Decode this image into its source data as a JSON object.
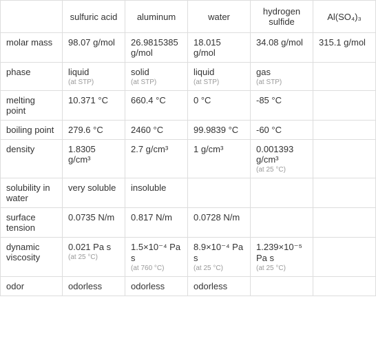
{
  "table": {
    "columns": [
      "",
      "sulfuric acid",
      "aluminum",
      "water",
      "hydrogen sulfide",
      "Al(SO₄)₃"
    ],
    "rows": [
      {
        "label": "molar mass",
        "cells": [
          {
            "main": "98.07 g/mol",
            "sub": ""
          },
          {
            "main": "26.9815385 g/mol",
            "sub": ""
          },
          {
            "main": "18.015 g/mol",
            "sub": ""
          },
          {
            "main": "34.08 g/mol",
            "sub": ""
          },
          {
            "main": "315.1 g/mol",
            "sub": ""
          }
        ]
      },
      {
        "label": "phase",
        "cells": [
          {
            "main": "liquid",
            "sub": "(at STP)"
          },
          {
            "main": "solid",
            "sub": "(at STP)"
          },
          {
            "main": "liquid",
            "sub": "(at STP)"
          },
          {
            "main": "gas",
            "sub": "(at STP)"
          },
          {
            "main": "",
            "sub": ""
          }
        ]
      },
      {
        "label": "melting point",
        "cells": [
          {
            "main": "10.371 °C",
            "sub": ""
          },
          {
            "main": "660.4 °C",
            "sub": ""
          },
          {
            "main": "0 °C",
            "sub": ""
          },
          {
            "main": "-85 °C",
            "sub": ""
          },
          {
            "main": "",
            "sub": ""
          }
        ]
      },
      {
        "label": "boiling point",
        "cells": [
          {
            "main": "279.6 °C",
            "sub": ""
          },
          {
            "main": "2460 °C",
            "sub": ""
          },
          {
            "main": "99.9839 °C",
            "sub": ""
          },
          {
            "main": "-60 °C",
            "sub": ""
          },
          {
            "main": "",
            "sub": ""
          }
        ]
      },
      {
        "label": "density",
        "cells": [
          {
            "main": "1.8305 g/cm³",
            "sub": ""
          },
          {
            "main": "2.7 g/cm³",
            "sub": ""
          },
          {
            "main": "1 g/cm³",
            "sub": ""
          },
          {
            "main": "0.001393 g/cm³",
            "sub": "(at 25 °C)"
          },
          {
            "main": "",
            "sub": ""
          }
        ]
      },
      {
        "label": "solubility in water",
        "cells": [
          {
            "main": "very soluble",
            "sub": ""
          },
          {
            "main": "insoluble",
            "sub": ""
          },
          {
            "main": "",
            "sub": ""
          },
          {
            "main": "",
            "sub": ""
          },
          {
            "main": "",
            "sub": ""
          }
        ]
      },
      {
        "label": "surface tension",
        "cells": [
          {
            "main": "0.0735 N/m",
            "sub": ""
          },
          {
            "main": "0.817 N/m",
            "sub": ""
          },
          {
            "main": "0.0728 N/m",
            "sub": ""
          },
          {
            "main": "",
            "sub": ""
          },
          {
            "main": "",
            "sub": ""
          }
        ]
      },
      {
        "label": "dynamic viscosity",
        "cells": [
          {
            "main": "0.021 Pa s",
            "sub": "(at 25 °C)"
          },
          {
            "main": "1.5×10⁻⁴ Pa s",
            "sub": "(at 760 °C)"
          },
          {
            "main": "8.9×10⁻⁴ Pa s",
            "sub": "(at 25 °C)"
          },
          {
            "main": "1.239×10⁻⁵ Pa s",
            "sub": "(at 25 °C)"
          },
          {
            "main": "",
            "sub": ""
          }
        ]
      },
      {
        "label": "odor",
        "cells": [
          {
            "main": "odorless",
            "sub": ""
          },
          {
            "main": "odorless",
            "sub": ""
          },
          {
            "main": "odorless",
            "sub": ""
          },
          {
            "main": "",
            "sub": ""
          },
          {
            "main": "",
            "sub": ""
          }
        ]
      }
    ],
    "styling": {
      "border_color": "#dddddd",
      "text_color": "#333333",
      "sub_text_color": "#999999",
      "background_color": "#ffffff",
      "font_size": 13,
      "sub_font_size": 10
    }
  }
}
